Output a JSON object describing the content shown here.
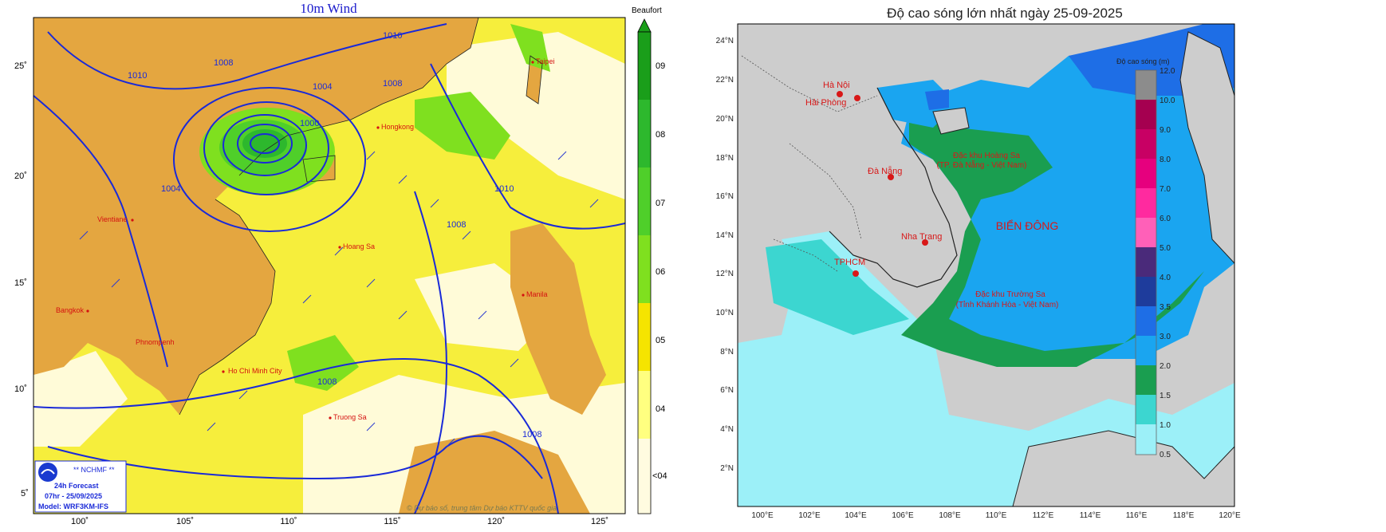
{
  "wind_map": {
    "title": "10m Wind",
    "lon_ticks": [
      "100˚",
      "105˚",
      "110˚",
      "115˚",
      "120˚",
      "125˚"
    ],
    "lat_ticks": [
      "5˚",
      "10˚",
      "15˚",
      "20˚",
      "25˚"
    ],
    "colorbar": {
      "title": "Beaufort",
      "labels": [
        "09",
        "08",
        "07",
        "06",
        "05",
        "04",
        "<04"
      ],
      "colors": [
        "#1a9e1a",
        "#2db82d",
        "#4fcf2a",
        "#7fe01f",
        "#f5e400",
        "#ffff80",
        "#fffbe0"
      ]
    },
    "isobar_labels": [
      "1010",
      "1008",
      "1004",
      "1000",
      "1004",
      "1008",
      "1008",
      "1010",
      "1010",
      "1008",
      "1008"
    ],
    "cities": [
      "Taipei",
      "Hongkong",
      "Vientiane",
      "Hoang Sa",
      "Manila",
      "Bangkok",
      "Phnompenh",
      "Ho Chi Minh City",
      "Truong Sa"
    ],
    "logo": {
      "org": "** NCHMF **",
      "forecast": "24h Forecast",
      "time": "07hr - 25/09/2025",
      "model": "Model: WRF3KM-IFS"
    },
    "credit": "© Dự báo số, trung tâm Dự báo KTTV quốc gia"
  },
  "wave_map": {
    "title": "Độ cao sóng lớn nhất ngày 25-09-2025",
    "lat_ticks": [
      "24°N",
      "22°N",
      "20°N",
      "18°N",
      "16°N",
      "14°N",
      "12°N",
      "10°N",
      "8°N",
      "6°N",
      "4°N",
      "2°N"
    ],
    "lon_ticks": [
      "100°E",
      "102°E",
      "104°E",
      "106°E",
      "108°E",
      "110°E",
      "112°E",
      "114°E",
      "116°E",
      "118°E",
      "120°E"
    ],
    "cities": [
      "Hà Nội",
      "Hải Phòng",
      "Đà Nẵng",
      "Nha Trang",
      "TPHCM"
    ],
    "region_labels": {
      "hoang_sa_1": "Đặc khu Hoàng Sa",
      "hoang_sa_2": "(TP. Đà Nẵng - Việt Nam)",
      "bien_dong": "BIỂN ĐÔNG",
      "truong_sa_1": "Đặc khu Trường Sa",
      "truong_sa_2": "(Tỉnh Khánh Hòa - Việt Nam)"
    },
    "colorbar": {
      "title": "Độ cao sóng (m)",
      "labels": [
        "12.0",
        "10.0",
        "9.0",
        "8.0",
        "7.0",
        "6.0",
        "5.0",
        "4.0",
        "3.5",
        "3.0",
        "2.0",
        "1.5",
        "1.0",
        "0.5"
      ],
      "colors": [
        "#8c8c8c",
        "#a50050",
        "#c80064",
        "#e6007e",
        "#ff2a9f",
        "#ff60b8",
        "#4a2a7a",
        "#1e3c9c",
        "#1e6ee6",
        "#1aa5f0",
        "#1a9e50",
        "#3cd6d0",
        "#9cf0f8"
      ]
    }
  }
}
